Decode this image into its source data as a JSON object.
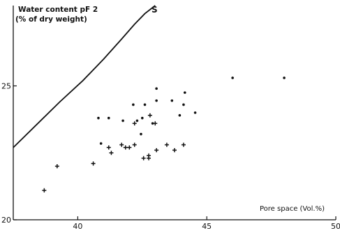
{
  "chart_data": {
    "type": "scatter",
    "ylabel_line1": "Water content  pF 2",
    "ylabel_line2": "(% of dry weight)",
    "xlabel": "Pore space (Vol.%)",
    "curve_label": "S",
    "xlim": [
      37.5,
      50
    ],
    "ylim": [
      20,
      28
    ],
    "x_ticks": [
      40,
      45,
      50
    ],
    "y_ticks": [
      20,
      25
    ],
    "curve_S": {
      "x": [
        37.5,
        38.4,
        39.3,
        40.2,
        41.0,
        41.7,
        42.2,
        42.6,
        43.0
      ],
      "y": [
        22.7,
        23.55,
        24.4,
        25.2,
        26.0,
        26.75,
        27.3,
        27.7,
        28.0
      ]
    },
    "points_plus": [
      {
        "x": 38.7,
        "y": 21.1
      },
      {
        "x": 39.2,
        "y": 22.0
      },
      {
        "x": 40.6,
        "y": 22.1
      },
      {
        "x": 41.2,
        "y": 22.7
      },
      {
        "x": 41.3,
        "y": 22.5
      },
      {
        "x": 41.7,
        "y": 22.8
      },
      {
        "x": 41.85,
        "y": 22.7
      },
      {
        "x": 42.0,
        "y": 22.7
      },
      {
        "x": 42.2,
        "y": 22.8
      },
      {
        "x": 42.55,
        "y": 22.3
      },
      {
        "x": 42.75,
        "y": 22.3
      },
      {
        "x": 42.75,
        "y": 22.4
      },
      {
        "x": 43.05,
        "y": 22.6
      },
      {
        "x": 43.45,
        "y": 22.8
      },
      {
        "x": 43.75,
        "y": 22.6
      },
      {
        "x": 44.1,
        "y": 22.8
      },
      {
        "x": 42.8,
        "y": 23.9
      },
      {
        "x": 43.0,
        "y": 23.6
      },
      {
        "x": 42.2,
        "y": 23.6
      }
    ],
    "points_dot": [
      {
        "x": 40.8,
        "y": 23.8
      },
      {
        "x": 41.2,
        "y": 23.8
      },
      {
        "x": 40.9,
        "y": 22.85
      },
      {
        "x": 41.75,
        "y": 23.7
      },
      {
        "x": 42.15,
        "y": 24.3
      },
      {
        "x": 42.3,
        "y": 23.7
      },
      {
        "x": 42.5,
        "y": 23.8
      },
      {
        "x": 42.6,
        "y": 24.3
      },
      {
        "x": 42.45,
        "y": 23.2
      },
      {
        "x": 42.9,
        "y": 23.6
      },
      {
        "x": 43.05,
        "y": 24.9
      },
      {
        "x": 43.05,
        "y": 24.45
      },
      {
        "x": 43.65,
        "y": 24.45
      },
      {
        "x": 43.95,
        "y": 23.9
      },
      {
        "x": 44.1,
        "y": 24.3
      },
      {
        "x": 44.15,
        "y": 24.75
      },
      {
        "x": 44.55,
        "y": 24.0
      },
      {
        "x": 46.0,
        "y": 25.3
      },
      {
        "x": 48.0,
        "y": 25.3
      }
    ]
  }
}
